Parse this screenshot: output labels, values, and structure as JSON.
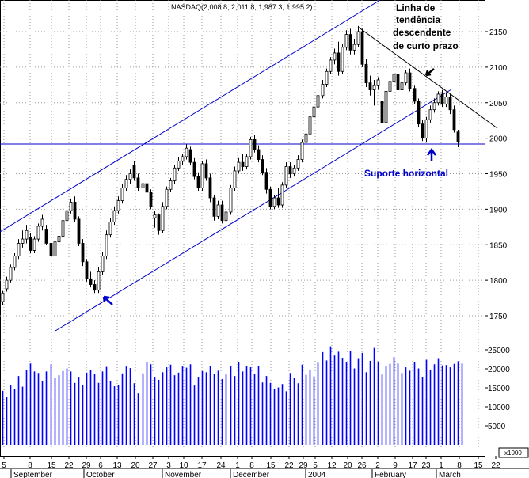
{
  "chart_data": {
    "type": "candlestick",
    "title": "NASDAQ(2,008.8, 2,011.8, 1,987.3, 1,995.2)",
    "price_axis": {
      "ylim": [
        1710,
        2200
      ],
      "ticks": [
        1750,
        1800,
        1850,
        1900,
        1950,
        2000,
        2050,
        2100,
        2150
      ]
    },
    "volume_axis": {
      "ylim": [
        0,
        27000
      ],
      "ticks": [
        5000,
        10000,
        15000,
        20000,
        25000
      ],
      "unit_label": "x1000"
    },
    "x_tick_labels": [
      "5",
      "8",
      "15",
      "22",
      "29",
      "6",
      "13",
      "20",
      "27",
      "3",
      "10",
      "17",
      "24",
      "1",
      "8",
      "15",
      "22",
      "29",
      "5",
      "12",
      "20",
      "26",
      "2",
      "9",
      "17",
      "23",
      "1",
      "8",
      "15",
      "22"
    ],
    "month_labels": [
      "September",
      "October",
      "November",
      "December",
      "2004",
      "February",
      "March"
    ],
    "grid": true,
    "candles": [
      {
        "o": 1770,
        "h": 1785,
        "l": 1765,
        "c": 1782
      },
      {
        "o": 1788,
        "h": 1805,
        "l": 1784,
        "c": 1800
      },
      {
        "o": 1800,
        "h": 1822,
        "l": 1797,
        "c": 1818
      },
      {
        "o": 1818,
        "h": 1838,
        "l": 1814,
        "c": 1834
      },
      {
        "o": 1834,
        "h": 1858,
        "l": 1830,
        "c": 1852
      },
      {
        "o": 1852,
        "h": 1870,
        "l": 1846,
        "c": 1858
      },
      {
        "o": 1858,
        "h": 1878,
        "l": 1852,
        "c": 1870
      },
      {
        "o": 1860,
        "h": 1866,
        "l": 1838,
        "c": 1842
      },
      {
        "o": 1842,
        "h": 1862,
        "l": 1838,
        "c": 1858
      },
      {
        "o": 1858,
        "h": 1880,
        "l": 1854,
        "c": 1876
      },
      {
        "o": 1876,
        "h": 1892,
        "l": 1870,
        "c": 1886
      },
      {
        "o": 1872,
        "h": 1878,
        "l": 1850,
        "c": 1852
      },
      {
        "o": 1852,
        "h": 1868,
        "l": 1826,
        "c": 1834
      },
      {
        "o": 1834,
        "h": 1858,
        "l": 1830,
        "c": 1854
      },
      {
        "o": 1854,
        "h": 1870,
        "l": 1850,
        "c": 1862
      },
      {
        "o": 1862,
        "h": 1890,
        "l": 1858,
        "c": 1884
      },
      {
        "o": 1884,
        "h": 1902,
        "l": 1878,
        "c": 1898
      },
      {
        "o": 1898,
        "h": 1915,
        "l": 1894,
        "c": 1910
      },
      {
        "o": 1910,
        "h": 1918,
        "l": 1882,
        "c": 1886
      },
      {
        "o": 1886,
        "h": 1890,
        "l": 1848,
        "c": 1852
      },
      {
        "o": 1852,
        "h": 1858,
        "l": 1820,
        "c": 1826
      },
      {
        "o": 1826,
        "h": 1830,
        "l": 1798,
        "c": 1802
      },
      {
        "o": 1802,
        "h": 1812,
        "l": 1790,
        "c": 1794
      },
      {
        "o": 1794,
        "h": 1800,
        "l": 1782,
        "c": 1786
      },
      {
        "o": 1786,
        "h": 1818,
        "l": 1782,
        "c": 1812
      },
      {
        "o": 1812,
        "h": 1840,
        "l": 1808,
        "c": 1834
      },
      {
        "o": 1834,
        "h": 1870,
        "l": 1830,
        "c": 1864
      },
      {
        "o": 1864,
        "h": 1888,
        "l": 1860,
        "c": 1882
      },
      {
        "o": 1882,
        "h": 1904,
        "l": 1878,
        "c": 1898
      },
      {
        "o": 1898,
        "h": 1918,
        "l": 1894,
        "c": 1912
      },
      {
        "o": 1912,
        "h": 1935,
        "l": 1908,
        "c": 1930
      },
      {
        "o": 1930,
        "h": 1948,
        "l": 1926,
        "c": 1942
      },
      {
        "o": 1942,
        "h": 1956,
        "l": 1936,
        "c": 1950
      },
      {
        "o": 1962,
        "h": 1968,
        "l": 1940,
        "c": 1944
      },
      {
        "o": 1944,
        "h": 1950,
        "l": 1926,
        "c": 1930
      },
      {
        "o": 1930,
        "h": 1940,
        "l": 1922,
        "c": 1936
      },
      {
        "o": 1936,
        "h": 1946,
        "l": 1920,
        "c": 1924
      },
      {
        "o": 1924,
        "h": 1928,
        "l": 1900,
        "c": 1904
      },
      {
        "o": 1888,
        "h": 1898,
        "l": 1874,
        "c": 1892
      },
      {
        "o": 1892,
        "h": 1894,
        "l": 1864,
        "c": 1870
      },
      {
        "o": 1870,
        "h": 1910,
        "l": 1866,
        "c": 1904
      },
      {
        "o": 1904,
        "h": 1932,
        "l": 1900,
        "c": 1928
      },
      {
        "o": 1928,
        "h": 1944,
        "l": 1924,
        "c": 1940
      },
      {
        "o": 1940,
        "h": 1962,
        "l": 1936,
        "c": 1958
      },
      {
        "o": 1958,
        "h": 1974,
        "l": 1954,
        "c": 1968
      },
      {
        "o": 1968,
        "h": 1978,
        "l": 1962,
        "c": 1974
      },
      {
        "o": 1974,
        "h": 1992,
        "l": 1970,
        "c": 1986
      },
      {
        "o": 1984,
        "h": 1988,
        "l": 1962,
        "c": 1966
      },
      {
        "o": 1966,
        "h": 1972,
        "l": 1942,
        "c": 1946
      },
      {
        "o": 1946,
        "h": 1952,
        "l": 1926,
        "c": 1930
      },
      {
        "o": 1930,
        "h": 1968,
        "l": 1926,
        "c": 1964
      },
      {
        "o": 1964,
        "h": 1970,
        "l": 1940,
        "c": 1944
      },
      {
        "o": 1944,
        "h": 1950,
        "l": 1910,
        "c": 1916
      },
      {
        "o": 1916,
        "h": 1920,
        "l": 1884,
        "c": 1890
      },
      {
        "o": 1890,
        "h": 1912,
        "l": 1886,
        "c": 1906
      },
      {
        "o": 1906,
        "h": 1912,
        "l": 1880,
        "c": 1884
      },
      {
        "o": 1884,
        "h": 1900,
        "l": 1880,
        "c": 1896
      },
      {
        "o": 1896,
        "h": 1934,
        "l": 1892,
        "c": 1930
      },
      {
        "o": 1930,
        "h": 1960,
        "l": 1926,
        "c": 1954
      },
      {
        "o": 1954,
        "h": 1972,
        "l": 1950,
        "c": 1966
      },
      {
        "o": 1966,
        "h": 1978,
        "l": 1954,
        "c": 1960
      },
      {
        "o": 1960,
        "h": 1978,
        "l": 1956,
        "c": 1974
      },
      {
        "o": 1974,
        "h": 2002,
        "l": 1970,
        "c": 1998
      },
      {
        "o": 1998,
        "h": 2004,
        "l": 1980,
        "c": 1984
      },
      {
        "o": 1984,
        "h": 1990,
        "l": 1966,
        "c": 1970
      },
      {
        "o": 1970,
        "h": 1976,
        "l": 1948,
        "c": 1952
      },
      {
        "o": 1952,
        "h": 1958,
        "l": 1922,
        "c": 1928
      },
      {
        "o": 1928,
        "h": 1932,
        "l": 1900,
        "c": 1904
      },
      {
        "o": 1904,
        "h": 1920,
        "l": 1900,
        "c": 1916
      },
      {
        "o": 1916,
        "h": 1930,
        "l": 1902,
        "c": 1906
      },
      {
        "o": 1906,
        "h": 1938,
        "l": 1902,
        "c": 1934
      },
      {
        "o": 1934,
        "h": 1966,
        "l": 1930,
        "c": 1960
      },
      {
        "o": 1960,
        "h": 1966,
        "l": 1944,
        "c": 1950
      },
      {
        "o": 1950,
        "h": 1962,
        "l": 1946,
        "c": 1958
      },
      {
        "o": 1958,
        "h": 1976,
        "l": 1954,
        "c": 1970
      },
      {
        "o": 1970,
        "h": 1998,
        "l": 1966,
        "c": 1994
      },
      {
        "o": 1994,
        "h": 2012,
        "l": 1988,
        "c": 2006
      },
      {
        "o": 2006,
        "h": 2034,
        "l": 2002,
        "c": 2030
      },
      {
        "o": 2030,
        "h": 2050,
        "l": 2024,
        "c": 2044
      },
      {
        "o": 2044,
        "h": 2064,
        "l": 2040,
        "c": 2060
      },
      {
        "o": 2060,
        "h": 2082,
        "l": 2056,
        "c": 2076
      },
      {
        "o": 2076,
        "h": 2098,
        "l": 2072,
        "c": 2094
      },
      {
        "o": 2094,
        "h": 2114,
        "l": 2090,
        "c": 2110
      },
      {
        "o": 2110,
        "h": 2126,
        "l": 2104,
        "c": 2120
      },
      {
        "o": 2120,
        "h": 2136,
        "l": 2088,
        "c": 2094
      },
      {
        "o": 2094,
        "h": 2132,
        "l": 2090,
        "c": 2128
      },
      {
        "o": 2128,
        "h": 2152,
        "l": 2124,
        "c": 2146
      },
      {
        "o": 2146,
        "h": 2154,
        "l": 2118,
        "c": 2124
      },
      {
        "o": 2124,
        "h": 2140,
        "l": 2118,
        "c": 2132
      },
      {
        "o": 2132,
        "h": 2158,
        "l": 2128,
        "c": 2150
      },
      {
        "o": 2150,
        "h": 2154,
        "l": 2100,
        "c": 2104
      },
      {
        "o": 2104,
        "h": 2112,
        "l": 2072,
        "c": 2078
      },
      {
        "o": 2078,
        "h": 2088,
        "l": 2060,
        "c": 2068
      },
      {
        "o": 2068,
        "h": 2082,
        "l": 2046,
        "c": 2074
      },
      {
        "o": 2074,
        "h": 2086,
        "l": 2068,
        "c": 2082
      },
      {
        "o": 2052,
        "h": 2058,
        "l": 2018,
        "c": 2022
      },
      {
        "o": 2022,
        "h": 2072,
        "l": 2018,
        "c": 2066
      },
      {
        "o": 2066,
        "h": 2086,
        "l": 2062,
        "c": 2080
      },
      {
        "o": 2080,
        "h": 2096,
        "l": 2076,
        "c": 2090
      },
      {
        "o": 2090,
        "h": 2096,
        "l": 2064,
        "c": 2068
      },
      {
        "o": 2068,
        "h": 2084,
        "l": 2064,
        "c": 2078
      },
      {
        "o": 2078,
        "h": 2096,
        "l": 2074,
        "c": 2092
      },
      {
        "o": 2092,
        "h": 2098,
        "l": 2066,
        "c": 2070
      },
      {
        "o": 2070,
        "h": 2074,
        "l": 2048,
        "c": 2052
      },
      {
        "o": 2052,
        "h": 2056,
        "l": 2016,
        "c": 2020
      },
      {
        "o": 2020,
        "h": 2026,
        "l": 1996,
        "c": 2000
      },
      {
        "o": 2000,
        "h": 2030,
        "l": 1994,
        "c": 2026
      },
      {
        "o": 2026,
        "h": 2046,
        "l": 2022,
        "c": 2040
      },
      {
        "o": 2040,
        "h": 2056,
        "l": 2036,
        "c": 2050
      },
      {
        "o": 2050,
        "h": 2066,
        "l": 2046,
        "c": 2062
      },
      {
        "o": 2062,
        "h": 2068,
        "l": 2044,
        "c": 2048
      },
      {
        "o": 2048,
        "h": 2064,
        "l": 2044,
        "c": 2058
      },
      {
        "o": 2058,
        "h": 2062,
        "l": 2034,
        "c": 2040
      },
      {
        "o": 2040,
        "h": 2046,
        "l": 2008,
        "c": 2012
      },
      {
        "o": 2008.8,
        "h": 2011.8,
        "l": 1987.3,
        "c": 1995.2
      }
    ],
    "volume": [
      14200,
      12500,
      15800,
      14600,
      18100,
      15300,
      19600,
      21400,
      19300,
      18900,
      16800,
      19300,
      21200,
      17500,
      18300,
      19400,
      20100,
      19300,
      16300,
      17700,
      15800,
      19000,
      19700,
      18600,
      16300,
      19300,
      20500,
      16800,
      15400,
      15700,
      18800,
      20600,
      20200,
      16200,
      13500,
      18800,
      21700,
      21200,
      17700,
      17100,
      19100,
      20400,
      21100,
      18300,
      19000,
      20600,
      20300,
      21200,
      15600,
      17700,
      19400,
      19100,
      20800,
      18600,
      19500,
      17300,
      18500,
      20800,
      18100,
      21800,
      19300,
      20800,
      20400,
      18600,
      20700,
      16400,
      18100,
      16300,
      14700,
      15100,
      16000,
      14100,
      18900,
      17500,
      16200,
      21100,
      18400,
      19600,
      18000,
      21600,
      24400,
      22200,
      25900,
      23500,
      24500,
      22700,
      21800,
      24800,
      20100,
      22600,
      24200,
      19100,
      22100,
      25500,
      21900,
      18500,
      20600,
      21300,
      23100,
      21400,
      18900,
      20400,
      19500,
      21800,
      20100,
      17800,
      22400,
      19700,
      21200,
      22600,
      20900,
      21000,
      20400,
      21300,
      22000,
      21400
    ]
  },
  "annotations": {
    "trend_label_line1": "Linha de",
    "trend_label_line2": "tendência",
    "trend_label_line3": "descendente",
    "trend_label_line4": "de curto prazo",
    "support_label": "Suporte horizontal"
  },
  "colors": {
    "line_blue": "#0000cc",
    "candle_black": "#000000",
    "volume_blue": "#0000ff",
    "grid": "#999999"
  }
}
